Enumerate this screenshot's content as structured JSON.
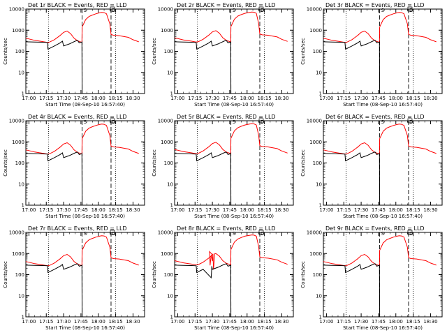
{
  "chart_data": [
    {
      "type": "line",
      "title": "Det 1r BLACK = Events, RED = LLD",
      "ylabel": "Counts/sec",
      "xlabel": "Start Time (08-Sep-10 16:57:40)",
      "x_ticks": [
        "17:00",
        "17:15",
        "17:30",
        "17:45",
        "18:00",
        "18:15",
        "18:30"
      ],
      "y_ticks": [
        "1",
        "10",
        "100",
        "1000",
        "10000"
      ],
      "ylim": [
        1,
        10000
      ],
      "scale": "log",
      "markers": [
        "S",
        "D"
      ],
      "variant": "a",
      "series": [
        {
          "name": "Events",
          "color": "#000000"
        },
        {
          "name": "LLD",
          "color": "#ff0000"
        }
      ]
    },
    {
      "type": "line",
      "title": "Det 2r BLACK = Events, RED = LLD",
      "ylabel": "Counts/sec",
      "xlabel": "Start Time (08-Sep-10 16:57:40)",
      "x_ticks": [
        "17:00",
        "17:15",
        "17:30",
        "17:45",
        "18:00",
        "18:15",
        "18:30"
      ],
      "y_ticks": [
        "1",
        "10",
        "100",
        "1000",
        "10000"
      ],
      "ylim": [
        1,
        10000
      ],
      "scale": "log",
      "markers": [
        "S",
        "D"
      ],
      "variant": "b",
      "series": [
        {
          "name": "Events",
          "color": "#000000"
        },
        {
          "name": "LLD",
          "color": "#ff0000"
        }
      ]
    },
    {
      "type": "line",
      "title": "Det 3r BLACK = Events, RED = LLD",
      "ylabel": "Counts/sec",
      "xlabel": "Start Time (08-Sep-10 16:57:40)",
      "x_ticks": [
        "17:00",
        "17:15",
        "17:30",
        "17:45",
        "18:00",
        "18:15",
        "18:30"
      ],
      "y_ticks": [
        "1",
        "10",
        "100",
        "1000",
        "10000"
      ],
      "ylim": [
        1,
        10000
      ],
      "scale": "log",
      "markers": [
        "S",
        "D"
      ],
      "variant": "a",
      "series": [
        {
          "name": "Events",
          "color": "#000000"
        },
        {
          "name": "LLD",
          "color": "#ff0000"
        }
      ]
    },
    {
      "type": "line",
      "title": "Det 4r BLACK = Events, RED = LLD",
      "ylabel": "Counts/sec",
      "xlabel": "Start Time (08-Sep-10 16:57:40)",
      "x_ticks": [
        "17:00",
        "17:15",
        "17:30",
        "17:45",
        "18:00",
        "18:15",
        "18:30"
      ],
      "y_ticks": [
        "1",
        "10",
        "100",
        "1000",
        "10000"
      ],
      "ylim": [
        1,
        10000
      ],
      "scale": "log",
      "markers": [
        "S",
        "D"
      ],
      "variant": "a",
      "series": [
        {
          "name": "Events",
          "color": "#000000"
        },
        {
          "name": "LLD",
          "color": "#ff0000"
        }
      ]
    },
    {
      "type": "line",
      "title": "Det 5r BLACK = Events, RED = LLD",
      "ylabel": "Counts/sec",
      "xlabel": "Start Time (08-Sep-10 16:57:40)",
      "x_ticks": [
        "17:00",
        "17:15",
        "17:30",
        "17:45",
        "18:00",
        "18:15",
        "18:30"
      ],
      "y_ticks": [
        "1",
        "10",
        "100",
        "1000",
        "10000"
      ],
      "ylim": [
        1,
        10000
      ],
      "scale": "log",
      "markers": [
        "S",
        "D"
      ],
      "variant": "b",
      "series": [
        {
          "name": "Events",
          "color": "#000000"
        },
        {
          "name": "LLD",
          "color": "#ff0000"
        }
      ]
    },
    {
      "type": "line",
      "title": "Det 6r BLACK = Events, RED = LLD",
      "ylabel": "Counts/sec",
      "xlabel": "Start Time (08-Sep-10 16:57:40)",
      "x_ticks": [
        "17:00",
        "17:15",
        "17:30",
        "17:45",
        "18:00",
        "18:15",
        "18:30"
      ],
      "y_ticks": [
        "1",
        "10",
        "100",
        "1000",
        "10000"
      ],
      "ylim": [
        1,
        10000
      ],
      "scale": "log",
      "markers": [
        "S",
        "D"
      ],
      "variant": "a",
      "series": [
        {
          "name": "Events",
          "color": "#000000"
        },
        {
          "name": "LLD",
          "color": "#ff0000"
        }
      ]
    },
    {
      "type": "line",
      "title": "Det 7r BLACK = Events, RED = LLD",
      "ylabel": "Counts/sec",
      "xlabel": "Start Time (08-Sep-10 16:57:40)",
      "x_ticks": [
        "17:00",
        "17:15",
        "17:30",
        "17:45",
        "18:00",
        "18:15",
        "18:30"
      ],
      "y_ticks": [
        "1",
        "10",
        "100",
        "1000",
        "10000"
      ],
      "ylim": [
        1,
        10000
      ],
      "scale": "log",
      "markers": [
        "S",
        "D"
      ],
      "variant": "a",
      "series": [
        {
          "name": "Events",
          "color": "#000000"
        },
        {
          "name": "LLD",
          "color": "#ff0000"
        }
      ]
    },
    {
      "type": "line",
      "title": "Det 8r BLACK = Events, RED = LLD",
      "ylabel": "Counts/sec",
      "xlabel": "Start Time (08-Sep-10 16:57:40)",
      "x_ticks": [
        "17:00",
        "17:15",
        "17:30",
        "17:45",
        "18:00",
        "18:15",
        "18:30"
      ],
      "y_ticks": [
        "1",
        "10",
        "100",
        "1000",
        "10000"
      ],
      "ylim": [
        1,
        10000
      ],
      "scale": "log",
      "markers": [
        "S",
        "D"
      ],
      "variant": "c",
      "series": [
        {
          "name": "Events",
          "color": "#000000"
        },
        {
          "name": "LLD",
          "color": "#ff0000"
        }
      ]
    },
    {
      "type": "line",
      "title": "Det 9r BLACK = Events, RED = LLD",
      "ylabel": "Counts/sec",
      "xlabel": "Start Time (08-Sep-10 16:57:40)",
      "x_ticks": [
        "17:00",
        "17:15",
        "17:30",
        "17:45",
        "18:00",
        "18:15",
        "18:30"
      ],
      "y_ticks": [
        "1",
        "10",
        "100",
        "1000",
        "10000"
      ],
      "ylim": [
        1,
        10000
      ],
      "scale": "log",
      "markers": [
        "S",
        "D"
      ],
      "variant": "a",
      "series": [
        {
          "name": "Events",
          "color": "#000000"
        },
        {
          "name": "LLD",
          "color": "#ff0000"
        }
      ]
    }
  ]
}
